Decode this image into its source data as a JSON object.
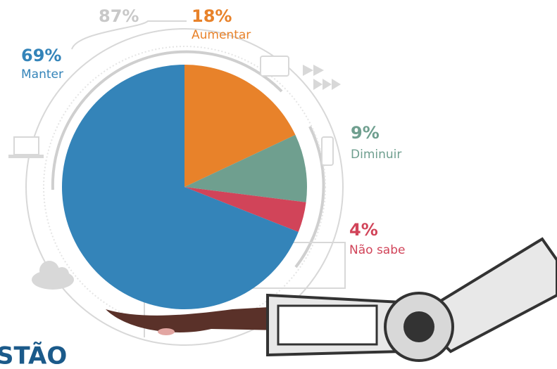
{
  "chart_data": {
    "type": "pie",
    "categories": [
      "Aumentar",
      "Diminuir",
      "Não sabe",
      "Manter"
    ],
    "values": [
      18,
      9,
      4,
      69
    ],
    "value_labels": [
      "18%",
      "9%",
      "4%",
      "69%"
    ],
    "colors": [
      "#e8822a",
      "#6f9f8f",
      "#d14459",
      "#3484b9"
    ],
    "annotation": "87%"
  },
  "footer_text": "STÃO"
}
